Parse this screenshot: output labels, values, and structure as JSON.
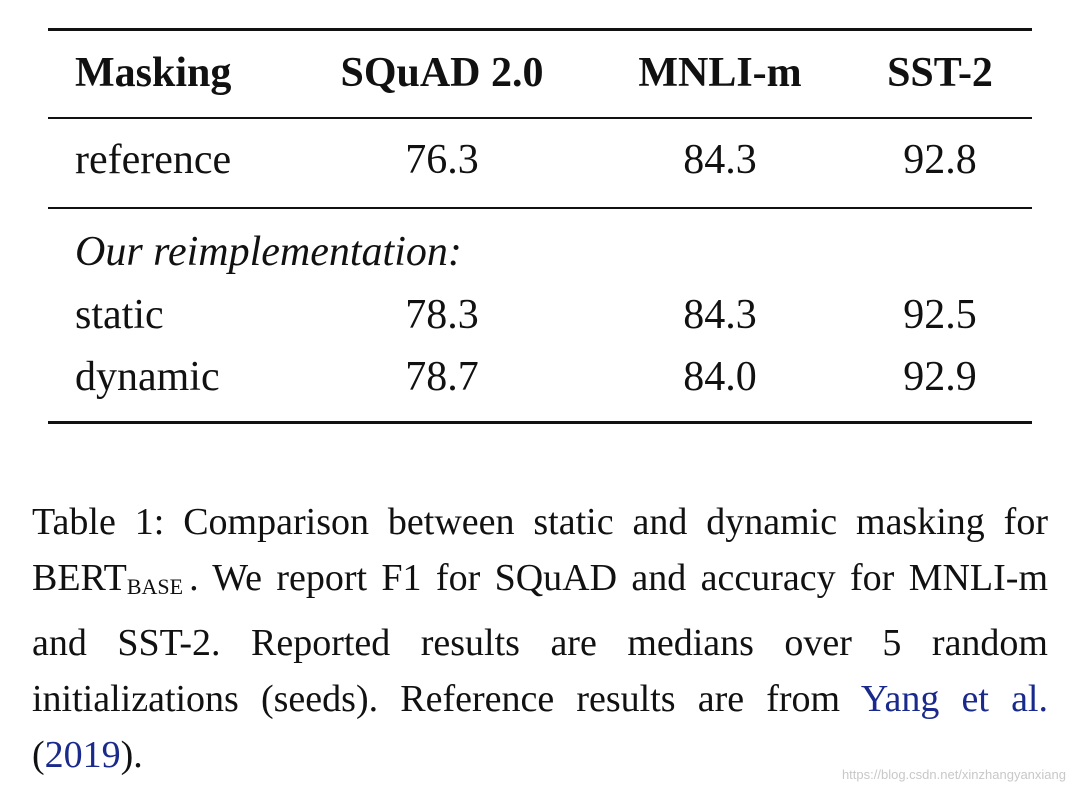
{
  "table": {
    "header": [
      "Masking",
      "SQuAD 2.0",
      "MNLI-m",
      "SST-2"
    ],
    "rows": [
      [
        "reference",
        "76.3",
        "84.3",
        "92.8"
      ],
      [
        "static",
        "78.3",
        "84.3",
        "92.5"
      ],
      [
        "dynamic",
        "78.7",
        "84.0",
        "92.9"
      ]
    ],
    "section_label": "Our reimplementation:"
  },
  "caption": {
    "parts": [
      {
        "text": "Table 1:  Comparison between static and dynamic masking for BERT",
        "style": "normal"
      },
      {
        "text": "BASE",
        "style": "sub"
      },
      {
        "text": ". We report F1 for SQuAD and accuracy for MNLI-m and SST-2. Reported results are medians over 5 random initializations (seeds).  Reference results are from ",
        "style": "normal"
      },
      {
        "text": "Yang et al.",
        "style": "link"
      },
      {
        "text": " (",
        "style": "normal"
      },
      {
        "text": "2019",
        "style": "link"
      },
      {
        "text": ").",
        "style": "normal"
      }
    ]
  },
  "watermark": "https://blog.csdn.net/xinzhangyanxiang"
}
